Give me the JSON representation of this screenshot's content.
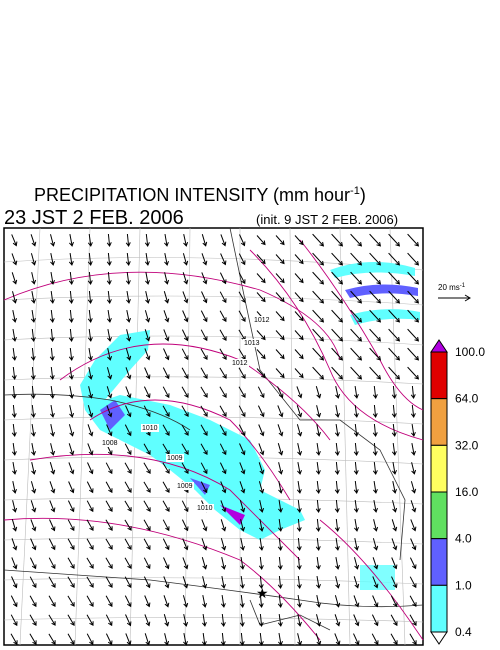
{
  "title": {
    "main": "PRECIPITATION INTENSITY (mm hour",
    "exponent": "-1",
    "close": ")"
  },
  "valid_time": "23 JST 2 FEB. 2006",
  "init_time": "(init. 9 JST 2 FEB. 2006)",
  "wind_scale": {
    "label": "20 ms",
    "exponent": "-1"
  },
  "colorbar": {
    "levels": [
      "100.0",
      "64.0",
      "32.0",
      "16.0",
      "4.0",
      "1.0",
      "0.4"
    ],
    "colors": [
      "#b000e0",
      "#e00000",
      "#f0a040",
      "#ffff60",
      "#60e060",
      "#6060ff",
      "#60ffff",
      "#ffffff"
    ]
  },
  "contour_labels": [
    "1013",
    "1012",
    "1010",
    "1009",
    "1008",
    "1009",
    "1010",
    "1012"
  ]
}
